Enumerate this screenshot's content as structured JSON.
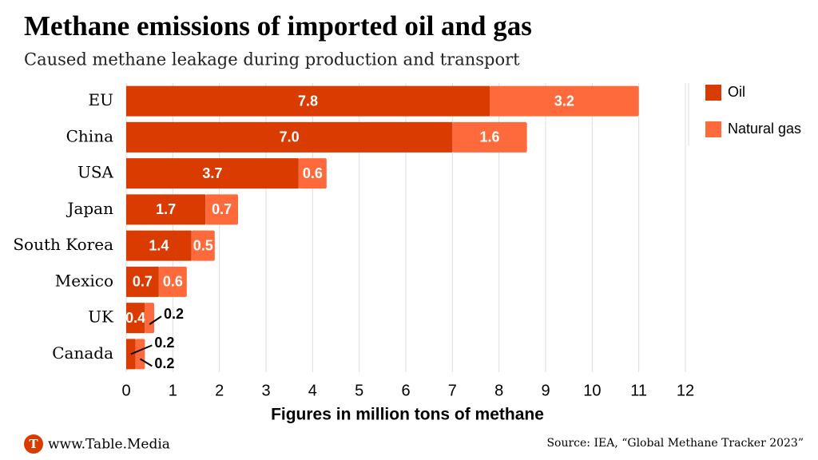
{
  "chart_data": {
    "type": "stacked-bar-horizontal",
    "title": "Methane emissions of imported oil and gas",
    "subtitle": "Caused methane leakage during production and transport",
    "x_label": "Figures in million tons of methane",
    "categories": [
      "EU",
      "China",
      "USA",
      "Japan",
      "South Korea",
      "Mexico",
      "UK",
      "Canada"
    ],
    "series": [
      {
        "name": "Oil",
        "color": "#da3b01",
        "values": [
          7.8,
          7.0,
          3.7,
          1.7,
          1.4,
          0.7,
          0.4,
          0.2
        ],
        "value_labels": [
          "7.8",
          "7.0",
          "3.7",
          "1.7",
          "1.4",
          "0.7",
          "0.4",
          "0.2"
        ]
      },
      {
        "name": "Natural gas",
        "color": "#ff6a3d",
        "values": [
          3.2,
          1.6,
          0.6,
          0.7,
          0.5,
          0.6,
          0.2,
          0.2
        ],
        "value_labels": [
          "3.2",
          "1.6",
          "0.6",
          "0.7",
          "0.5",
          "0.6",
          "0.2",
          "0.2"
        ]
      }
    ],
    "xlim": [
      0,
      12
    ],
    "xticks": [
      0,
      1,
      2,
      3,
      4,
      5,
      6,
      7,
      8,
      9,
      10,
      11,
      12
    ],
    "grid": true,
    "legend": "right"
  },
  "footer": {
    "logo": "T",
    "site": "www.Table.Media",
    "source": "Source: IEA, “Global Methane Tracker 2023”"
  }
}
